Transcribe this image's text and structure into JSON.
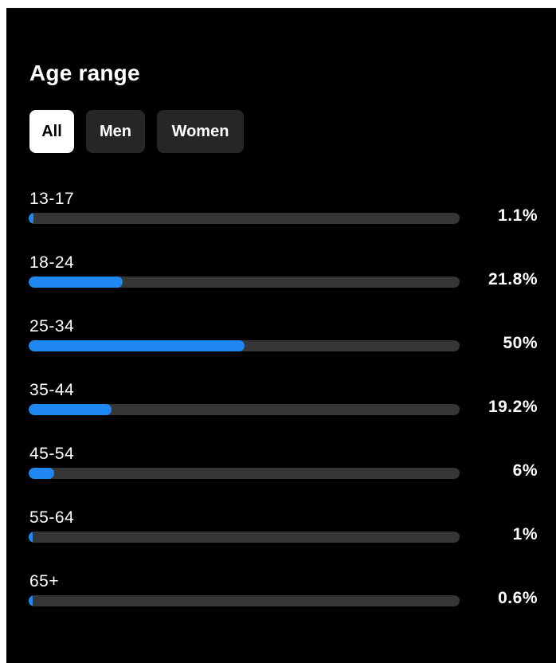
{
  "title": "Age range",
  "tabs": [
    {
      "label": "All",
      "active": true
    },
    {
      "label": "Men",
      "active": false
    },
    {
      "label": "Women",
      "active": false
    }
  ],
  "colors": {
    "background": "#000000",
    "bar_fill": "#1e88f0",
    "bar_track": "#363636",
    "tab_inactive": "#262626",
    "tab_active": "#ffffff"
  },
  "rows": [
    {
      "label": "13-17",
      "value": "1.1%",
      "percent": 1.1
    },
    {
      "label": "18-24",
      "value": "21.8%",
      "percent": 21.8
    },
    {
      "label": "25-34",
      "value": "50%",
      "percent": 50
    },
    {
      "label": "35-44",
      "value": "19.2%",
      "percent": 19.2
    },
    {
      "label": "45-54",
      "value": "6%",
      "percent": 6
    },
    {
      "label": "55-64",
      "value": "1%",
      "percent": 1
    },
    {
      "label": "65+",
      "value": "0.6%",
      "percent": 0.6
    }
  ]
}
